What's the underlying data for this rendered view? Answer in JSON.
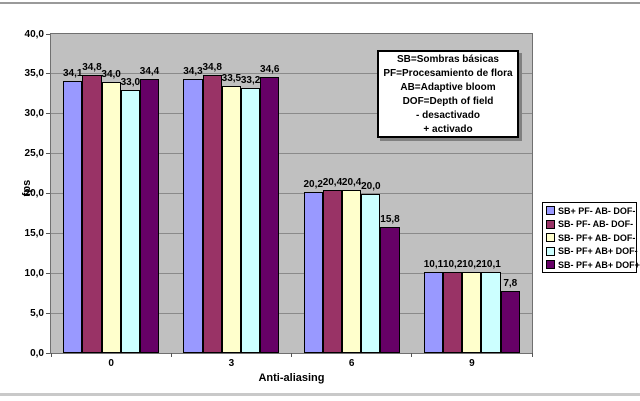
{
  "page": {
    "background": "#FFFFFF",
    "top_rule_color": "#9A9A9A",
    "bottom_rule_color": "#C9C9C9"
  },
  "chart_data": {
    "type": "bar",
    "title": "",
    "xlabel": "Anti-aliasing",
    "ylabel": "fps",
    "categories": [
      "0",
      "3",
      "6",
      "9"
    ],
    "series": [
      {
        "name": "SB+ PF- AB- DOF-",
        "color": "#9999FF",
        "values": [
          34.1,
          34.3,
          20.2,
          10.1
        ]
      },
      {
        "name": "SB- PF- AB- DOF-",
        "color": "#993366",
        "values": [
          34.8,
          34.8,
          20.4,
          10.2
        ]
      },
      {
        "name": "SB- PF+ AB- DOF-",
        "color": "#FFFFCC",
        "values": [
          34.0,
          33.5,
          20.4,
          10.2
        ]
      },
      {
        "name": "SB- PF+ AB+ DOF-",
        "color": "#CCFFFF",
        "values": [
          33.0,
          33.2,
          20.0,
          10.1
        ]
      },
      {
        "name": "SB- PF+ AB+ DOF+",
        "color": "#660066",
        "values": [
          34.4,
          34.6,
          15.8,
          7.8
        ]
      }
    ],
    "ylim": [
      0,
      40
    ],
    "ytick_step": 5,
    "decimal_separator": ",",
    "grid": true,
    "data_labels": true,
    "legend_position": "right",
    "plot_bg": "#C0C0C0",
    "gridline_color": "#8A8A8A",
    "axis_color": "#707070",
    "bar_border_color": "#000000"
  },
  "annotation_box": {
    "lines": [
      "SB=Sombras básicas",
      "PF=Procesamiento de flora",
      "AB=Adaptive bloom",
      "DOF=Depth of field",
      "- desactivado",
      "+ activado"
    ],
    "shadow_color": "#808080"
  }
}
